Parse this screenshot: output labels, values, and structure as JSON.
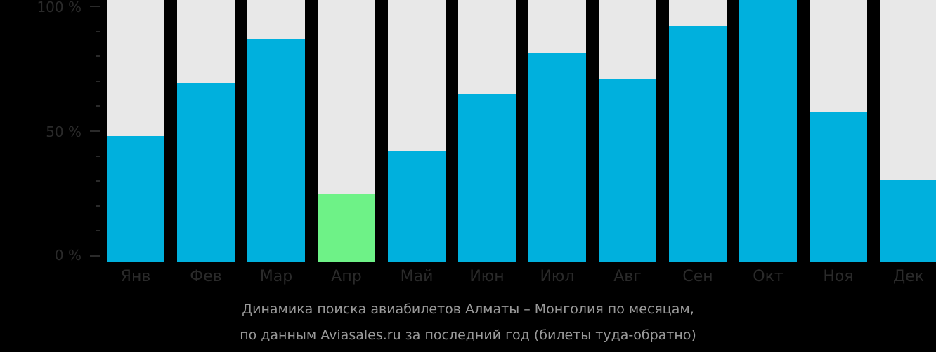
{
  "chart_data": {
    "type": "bar",
    "title": "Динамика поиска авиабилетов Алматы – Монголия по месяцам, по данным Aviasales.ru за последний год (билеты туда-обратно)",
    "xlabel": "",
    "ylabel": "",
    "ylim": [
      0,
      100
    ],
    "yticks": [
      "0 %",
      "50 %",
      "100 %"
    ],
    "categories": [
      "Янв",
      "Фев",
      "Мар",
      "Апр",
      "Май",
      "Июн",
      "Июл",
      "Авг",
      "Сен",
      "Окт",
      "Ноя",
      "Дек"
    ],
    "values": [
      48,
      68,
      85,
      26,
      42,
      64,
      80,
      70,
      90,
      100,
      57,
      31
    ],
    "highlight_index": 3,
    "colors": {
      "bar": "#00b0dd",
      "highlight": "#6ef287",
      "background_bar": "#e8e8e8"
    },
    "grid": false,
    "legend": null
  },
  "axis": {
    "y100": "100 %",
    "y50": "50 %",
    "y0": "0 %"
  },
  "months": [
    "Янв",
    "Фев",
    "Мар",
    "Апр",
    "Май",
    "Июн",
    "Июл",
    "Авг",
    "Сен",
    "Окт",
    "Ноя",
    "Дек"
  ],
  "caption": {
    "line1": "Динамика поиска авиабилетов Алматы – Монголия по месяцам,",
    "line2": "по данным Aviasales.ru за последний год (билеты туда-обратно)"
  }
}
